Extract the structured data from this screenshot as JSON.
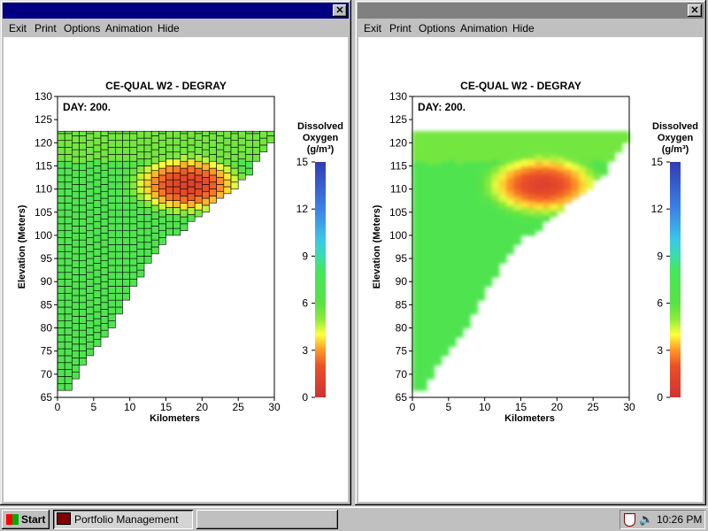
{
  "windows": [
    {
      "menu": [
        "Exit",
        "Print",
        "Options",
        "Animation",
        "Hide"
      ],
      "chart": {
        "title": "CE-QUAL W2 - DEGRAY",
        "day_label": "DAY: 200.",
        "xlabel": "Kilometers",
        "ylabel": "Elevation (Meters)",
        "legend_title": [
          "Dissolved",
          "Oxygen",
          "(g/m³)"
        ],
        "style": "grid"
      }
    },
    {
      "menu": [
        "Exit",
        "Print",
        "Options",
        "Animation",
        "Hide"
      ],
      "chart": {
        "title": "CE-QUAL W2 - DEGRAY",
        "day_label": "DAY: 200.",
        "xlabel": "Kilometers",
        "ylabel": "Elevation (Meters)",
        "legend_title": [
          "Dissolved",
          "Oxygen",
          "(g/m³)"
        ],
        "style": "smooth"
      }
    }
  ],
  "chart_data": {
    "type": "heatmap",
    "x_ticks": [
      0,
      5,
      10,
      15,
      20,
      25,
      30
    ],
    "y_ticks": [
      65,
      70,
      75,
      80,
      85,
      90,
      95,
      100,
      105,
      110,
      115,
      120,
      125,
      130
    ],
    "xlim": [
      0,
      30
    ],
    "ylim": [
      65,
      130
    ],
    "colorbar_ticks": [
      0,
      3,
      6,
      9,
      12,
      15
    ],
    "colorbar_range": [
      0,
      15
    ],
    "bottom_profile": [
      {
        "x": 0,
        "y": 66.5
      },
      {
        "x": 2,
        "y": 66.5
      },
      {
        "x": 2,
        "y": 69
      },
      {
        "x": 3,
        "y": 69
      },
      {
        "x": 3,
        "y": 72
      },
      {
        "x": 4,
        "y": 72
      },
      {
        "x": 4,
        "y": 74
      },
      {
        "x": 5,
        "y": 74
      },
      {
        "x": 5,
        "y": 76
      },
      {
        "x": 6,
        "y": 76
      },
      {
        "x": 6,
        "y": 78
      },
      {
        "x": 7,
        "y": 78
      },
      {
        "x": 7,
        "y": 80
      },
      {
        "x": 8,
        "y": 80
      },
      {
        "x": 8,
        "y": 83
      },
      {
        "x": 9,
        "y": 83
      },
      {
        "x": 9,
        "y": 86
      },
      {
        "x": 10,
        "y": 86
      },
      {
        "x": 10,
        "y": 89
      },
      {
        "x": 11,
        "y": 89
      },
      {
        "x": 11,
        "y": 91
      },
      {
        "x": 12,
        "y": 91
      },
      {
        "x": 12,
        "y": 94
      },
      {
        "x": 13,
        "y": 94
      },
      {
        "x": 13,
        "y": 96
      },
      {
        "x": 14,
        "y": 96
      },
      {
        "x": 14,
        "y": 98
      },
      {
        "x": 15,
        "y": 98
      },
      {
        "x": 15,
        "y": 100
      },
      {
        "x": 16,
        "y": 100
      },
      {
        "x": 17,
        "y": 101
      },
      {
        "x": 18,
        "y": 103
      },
      {
        "x": 19,
        "y": 104
      },
      {
        "x": 20,
        "y": 105
      },
      {
        "x": 21,
        "y": 107
      },
      {
        "x": 22,
        "y": 108
      },
      {
        "x": 23,
        "y": 109
      },
      {
        "x": 24,
        "y": 110
      },
      {
        "x": 25,
        "y": 112
      },
      {
        "x": 26,
        "y": 113
      },
      {
        "x": 27,
        "y": 116
      },
      {
        "x": 28,
        "y": 118
      },
      {
        "x": 29,
        "y": 120
      },
      {
        "x": 30,
        "y": 122.5
      }
    ],
    "surface_elevation": 122.5,
    "low_do_zone": {
      "x_range": [
        10,
        27
      ],
      "y_range": [
        103,
        117
      ],
      "center": {
        "x": 18,
        "y": 111
      },
      "min_do": 1
    }
  },
  "taskbar": {
    "start_label": "Start",
    "tasks": [
      "Portfolio Management",
      ""
    ],
    "clock": "10:26 PM"
  }
}
